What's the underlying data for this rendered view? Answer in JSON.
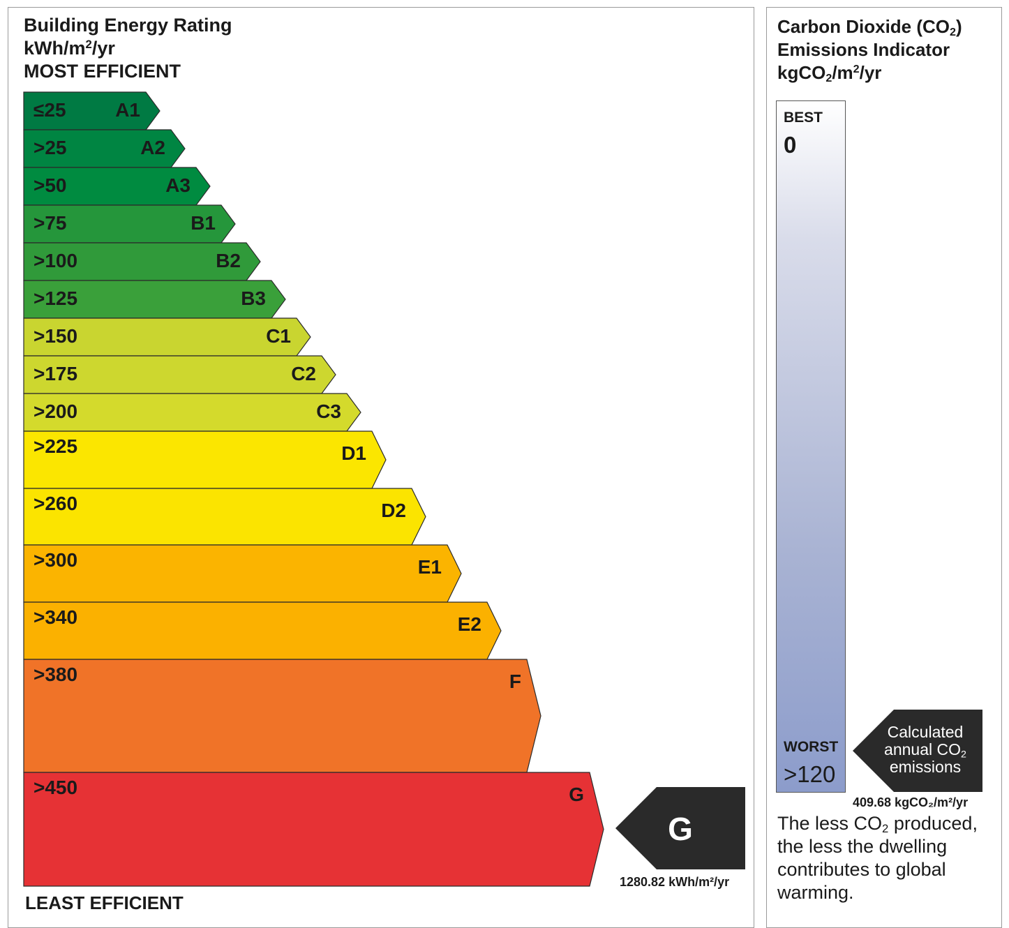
{
  "energy_rating": {
    "title_line1": "Building Energy Rating",
    "title_unit": "kWh/m",
    "title_unit_sup": "2",
    "title_unit_end": "/yr",
    "most_efficient": "MOST EFFICIENT",
    "least_efficient": "LEAST EFFICIENT",
    "bands": [
      {
        "threshold": "≤25",
        "grade": "A1",
        "color": "#007a43"
      },
      {
        "threshold": ">25",
        "grade": "A2",
        "color": "#008542"
      },
      {
        "threshold": ">50",
        "grade": "A3",
        "color": "#008b40"
      },
      {
        "threshold": ">75",
        "grade": "B1",
        "color": "#25963b"
      },
      {
        "threshold": ">100",
        "grade": "B2",
        "color": "#309a3a"
      },
      {
        "threshold": ">125",
        "grade": "B3",
        "color": "#3aa03a"
      },
      {
        "threshold": ">150",
        "grade": "C1",
        "color": "#c9d530"
      },
      {
        "threshold": ">175",
        "grade": "C2",
        "color": "#cdd72f"
      },
      {
        "threshold": ">200",
        "grade": "C3",
        "color": "#d4da2c"
      },
      {
        "threshold": ">225",
        "grade": "D1",
        "color": "#fbe600"
      },
      {
        "threshold": ">260",
        "grade": "D2",
        "color": "#fbe400"
      },
      {
        "threshold": ">300",
        "grade": "E1",
        "color": "#fbb400"
      },
      {
        "threshold": ">340",
        "grade": "E2",
        "color": "#fbb100"
      },
      {
        "threshold": ">380",
        "grade": "F",
        "color": "#f07328"
      },
      {
        "threshold": ">450",
        "grade": "G",
        "color": "#e63235"
      }
    ],
    "result_grade": "G",
    "result_value": "1280.82 kWh/m²/yr",
    "result_arrow_color": "#2a2a2a"
  },
  "co2": {
    "title_line1_pre": "Carbon Dioxide (CO",
    "title_line1_sub": "2",
    "title_line1_post": ")",
    "title_line2": "Emissions Indicator",
    "title_unit_pre": "kgCO",
    "title_unit_sub": "2",
    "title_unit_mid": "/m",
    "title_unit_sup": "2",
    "title_unit_end": "/yr",
    "best_label": "BEST",
    "best_value": "0",
    "worst_label": "WORST",
    "worst_value": ">120",
    "arrow_line1": "Calculated",
    "arrow_line2_pre": "annual CO",
    "arrow_line2_sub": "2",
    "arrow_line3": "emissions",
    "value": "409.68 kgCO₂/m²/yr",
    "footnote_pre": "The less CO",
    "footnote_sub": "2",
    "footnote_post": " produced, the less the dwelling contributes to global warming."
  }
}
